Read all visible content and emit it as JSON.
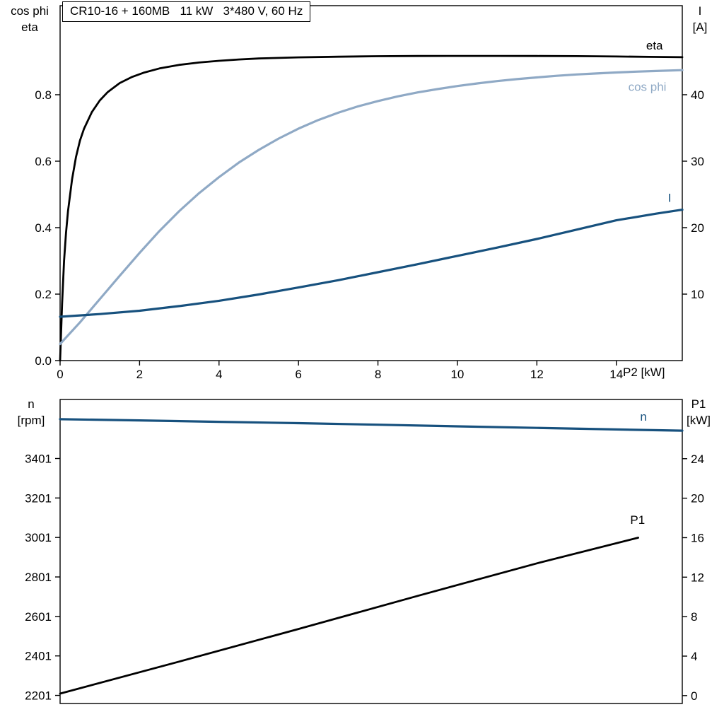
{
  "title": "CR10-16 + 160MB   11 kW   3*480 V, 60 Hz",
  "colors": {
    "curve_black": "#000000",
    "curve_dark_blue": "#17517e",
    "curve_light_blue": "#8fa9c5",
    "frame": "#000000",
    "background": "#ffffff"
  },
  "chart_data": [
    {
      "type": "line",
      "name": "motor-electrical",
      "grid": false,
      "x_label": "P2 [kW]",
      "x_range": [
        0,
        15.66
      ],
      "x_ticks": {
        "values": [
          0,
          2,
          4,
          6,
          8,
          10,
          12,
          14
        ],
        "labels": [
          "0",
          "2",
          "4",
          "6",
          "8",
          "10",
          "12",
          "14"
        ]
      },
      "left_axis": {
        "label_lines": [
          "cos phi",
          "eta"
        ],
        "range": [
          0,
          1.068
        ],
        "ticks": {
          "values": [
            0.0,
            0.2,
            0.4,
            0.6,
            0.8
          ],
          "labels": [
            "0.0",
            "0.2",
            "0.4",
            "0.6",
            "0.8"
          ]
        }
      },
      "right_axis": {
        "label_lines": [
          "I",
          "[A]"
        ],
        "range": [
          0,
          53.4
        ],
        "ticks": {
          "values": [
            10,
            20,
            30,
            40
          ],
          "labels": [
            "10",
            "20",
            "30",
            "40"
          ]
        }
      },
      "series": [
        {
          "name": "eta",
          "label": "eta",
          "axis": "left",
          "color": "#000000",
          "width": 2.8,
          "label_at": [
            14.75,
            0.936
          ],
          "points": [
            [
              0,
              0
            ],
            [
              0.05,
              0.17
            ],
            [
              0.1,
              0.3
            ],
            [
              0.15,
              0.385
            ],
            [
              0.2,
              0.45
            ],
            [
              0.3,
              0.545
            ],
            [
              0.4,
              0.613
            ],
            [
              0.5,
              0.662
            ],
            [
              0.6,
              0.697
            ],
            [
              0.8,
              0.748
            ],
            [
              1.0,
              0.783
            ],
            [
              1.2,
              0.808
            ],
            [
              1.5,
              0.835
            ],
            [
              1.8,
              0.853
            ],
            [
              2.1,
              0.866
            ],
            [
              2.5,
              0.879
            ],
            [
              3.0,
              0.89
            ],
            [
              3.5,
              0.897
            ],
            [
              4.0,
              0.902
            ],
            [
              4.5,
              0.906
            ],
            [
              5.0,
              0.909
            ],
            [
              6.0,
              0.9125
            ],
            [
              7.0,
              0.9145
            ],
            [
              8.0,
              0.9158
            ],
            [
              9.0,
              0.9165
            ],
            [
              10.0,
              0.9168
            ],
            [
              11.0,
              0.9168
            ],
            [
              12.0,
              0.9165
            ],
            [
              13.0,
              0.916
            ],
            [
              14.0,
              0.915
            ],
            [
              15.0,
              0.9138
            ],
            [
              15.66,
              0.913
            ]
          ]
        },
        {
          "name": "cos-phi",
          "label": "cos phi",
          "axis": "left",
          "color": "#8fa9c5",
          "width": 3.2,
          "label_at": [
            14.3,
            0.812
          ],
          "points": [
            [
              0,
              0.05
            ],
            [
              0.5,
              0.115
            ],
            [
              1.0,
              0.185
            ],
            [
              1.5,
              0.255
            ],
            [
              2.0,
              0.324
            ],
            [
              2.5,
              0.39
            ],
            [
              3.0,
              0.45
            ],
            [
              3.5,
              0.504
            ],
            [
              4.0,
              0.552
            ],
            [
              4.5,
              0.596
            ],
            [
              5.0,
              0.634
            ],
            [
              5.5,
              0.668
            ],
            [
              6.0,
              0.698
            ],
            [
              6.5,
              0.724
            ],
            [
              7.0,
              0.746
            ],
            [
              7.5,
              0.765
            ],
            [
              8.0,
              0.781
            ],
            [
              8.5,
              0.795
            ],
            [
              9.0,
              0.807
            ],
            [
              9.5,
              0.817
            ],
            [
              10.0,
              0.826
            ],
            [
              10.5,
              0.834
            ],
            [
              11.0,
              0.841
            ],
            [
              11.5,
              0.847
            ],
            [
              12.0,
              0.852
            ],
            [
              12.5,
              0.857
            ],
            [
              13.0,
              0.861
            ],
            [
              13.5,
              0.864
            ],
            [
              14.0,
              0.867
            ],
            [
              14.5,
              0.8695
            ],
            [
              15.0,
              0.8715
            ],
            [
              15.66,
              0.874
            ]
          ]
        },
        {
          "name": "current",
          "label": "I",
          "axis": "right",
          "color": "#17517e",
          "width": 3.2,
          "label_at": [
            15.3,
            23.9
          ],
          "points": [
            [
              0,
              6.6
            ],
            [
              1,
              7.0
            ],
            [
              2,
              7.5
            ],
            [
              3,
              8.2
            ],
            [
              4,
              9.0
            ],
            [
              5,
              9.95
            ],
            [
              6,
              11.0
            ],
            [
              7,
              12.1
            ],
            [
              8,
              13.3
            ],
            [
              9,
              14.5
            ],
            [
              10,
              15.75
            ],
            [
              11,
              17.0
            ],
            [
              12,
              18.3
            ],
            [
              13,
              19.7
            ],
            [
              14,
              21.1
            ],
            [
              15,
              22.1
            ],
            [
              15.66,
              22.7
            ]
          ]
        }
      ]
    },
    {
      "type": "line",
      "name": "speed-power",
      "grid": false,
      "x_label": "",
      "x_range": [
        0,
        15.66
      ],
      "x_ticks": {
        "values": [],
        "labels": []
      },
      "left_axis": {
        "label_lines": [
          "n",
          "[rpm]"
        ],
        "range": [
          2160,
          3700
        ],
        "ticks": {
          "values": [
            2201,
            2401,
            2601,
            2801,
            3001,
            3201,
            3401
          ],
          "labels": [
            "2201",
            "2401",
            "2601",
            "2801",
            "3001",
            "3201",
            "3401"
          ]
        }
      },
      "right_axis": {
        "label_lines": [
          "P1",
          "[kW]"
        ],
        "range": [
          -0.8,
          30.0
        ],
        "ticks": {
          "values": [
            0,
            4,
            8,
            12,
            16,
            20,
            24
          ],
          "labels": [
            "0",
            "4",
            "8",
            "12",
            "16",
            "20",
            "24"
          ]
        }
      },
      "series": [
        {
          "name": "speed",
          "label": "n",
          "axis": "left",
          "color": "#17517e",
          "width": 3.2,
          "label_at": [
            14.6,
            3592
          ],
          "points": [
            [
              0,
              3600
            ],
            [
              2,
              3594
            ],
            [
              4,
              3587
            ],
            [
              6,
              3580
            ],
            [
              8,
              3572
            ],
            [
              10,
              3564
            ],
            [
              12,
              3556
            ],
            [
              14,
              3548
            ],
            [
              15.66,
              3542
            ]
          ]
        },
        {
          "name": "p1",
          "label": "P1",
          "axis": "right",
          "color": "#000000",
          "width": 2.8,
          "label_at": [
            14.35,
            17.4
          ],
          "points": [
            [
              0,
              0.2
            ],
            [
              3,
              3.45
            ],
            [
              6,
              6.75
            ],
            [
              9,
              10.1
            ],
            [
              12,
              13.4
            ],
            [
              14.55,
              16.0
            ]
          ]
        }
      ]
    }
  ]
}
